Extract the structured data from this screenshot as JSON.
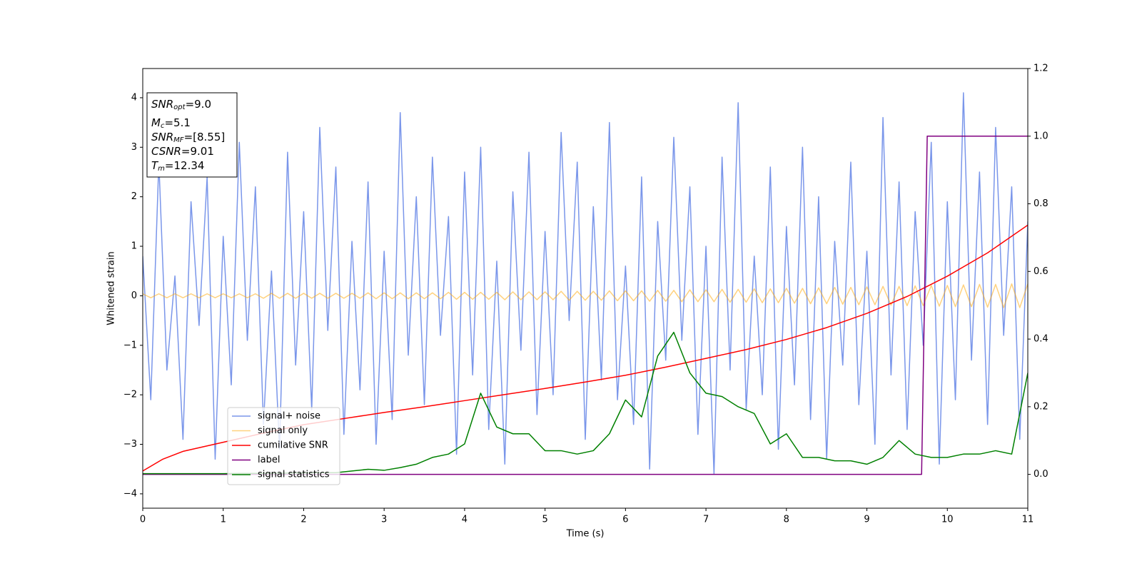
{
  "chart_data": {
    "type": "line",
    "xlabel": "Time (s)",
    "ylabel": "Whitened strain",
    "xlim": [
      0,
      11
    ],
    "xticks": [
      0,
      1,
      2,
      3,
      4,
      5,
      6,
      7,
      8,
      9,
      10,
      11
    ],
    "ylim": [
      -4.29,
      4.59
    ],
    "yticks": [
      {
        "value": -4,
        "label": "−4"
      },
      {
        "value": -3,
        "label": "−3"
      },
      {
        "value": -2,
        "label": "−2"
      },
      {
        "value": -1,
        "label": "−1"
      },
      0,
      1,
      2,
      3,
      4
    ],
    "y2lim": [
      -0.1,
      1.2
    ],
    "y2ticks": [
      {
        "value": 0,
        "label": "0.0"
      },
      {
        "value": 0.2,
        "label": "0.2"
      },
      {
        "value": 0.4,
        "label": "0.4"
      },
      {
        "value": 0.6,
        "label": "0.6"
      },
      {
        "value": 0.8,
        "label": "0.8"
      },
      {
        "value": 1,
        "label": "1.0"
      },
      {
        "value": 1.2,
        "label": "1.2"
      }
    ],
    "legend": "lower left",
    "annotation": [
      {
        "main": "SNR",
        "sub": "opt",
        "rest": "=9.0"
      },
      {
        "main": "M",
        "sub": "c",
        "rest": "=5.1"
      },
      {
        "main": "SNR",
        "sub": "MF",
        "rest": "=[8.55]"
      },
      {
        "main": "CSNR",
        "rest": "=9.01"
      },
      {
        "main": "T",
        "sub": "m",
        "rest": "=12.34"
      }
    ],
    "x": [
      0,
      0.1,
      0.2,
      0.3,
      0.4,
      0.5,
      0.6,
      0.7,
      0.8,
      0.9,
      1,
      1.1,
      1.2,
      1.3,
      1.4,
      1.5,
      1.6,
      1.7,
      1.8,
      1.9,
      2,
      2.1,
      2.2,
      2.3,
      2.4,
      2.5,
      2.6,
      2.7,
      2.8,
      2.9,
      3,
      3.1,
      3.2,
      3.3,
      3.4,
      3.5,
      3.6,
      3.7,
      3.8,
      3.9,
      4,
      4.1,
      4.2,
      4.3,
      4.4,
      4.5,
      4.6,
      4.7,
      4.8,
      4.9,
      5,
      5.1,
      5.2,
      5.3,
      5.4,
      5.5,
      5.6,
      5.7,
      5.8,
      5.9,
      6,
      6.1,
      6.2,
      6.3,
      6.4,
      6.5,
      6.6,
      6.7,
      6.8,
      6.9,
      7,
      7.1,
      7.2,
      7.3,
      7.4,
      7.5,
      7.6,
      7.7,
      7.8,
      7.9,
      8,
      8.1,
      8.2,
      8.3,
      8.4,
      8.5,
      8.6,
      8.7,
      8.8,
      8.9,
      9,
      9.1,
      9.2,
      9.3,
      9.4,
      9.5,
      9.6,
      9.7,
      9.8,
      9.9,
      10,
      10.1,
      10.2,
      10.3,
      10.4,
      10.5,
      10.6,
      10.7,
      10.8,
      10.9,
      11
    ],
    "series": [
      {
        "name": "signal+ noise",
        "color": "#4169e1",
        "alpha": 0.7,
        "values": [
          0.8,
          -2.1,
          2.7,
          -1.5,
          0.4,
          -2.9,
          1.9,
          -0.6,
          2.4,
          -3.3,
          1.2,
          -1.8,
          3.1,
          -0.9,
          2.2,
          -2.6,
          0.5,
          -3.1,
          2.9,
          -1.4,
          1.7,
          -2.3,
          3.4,
          -0.7,
          2.6,
          -2.8,
          1.1,
          -1.9,
          2.3,
          -3.0,
          0.9,
          -2.5,
          3.7,
          -1.2,
          2.0,
          -2.2,
          2.8,
          -0.8,
          1.6,
          -3.2,
          2.5,
          -1.6,
          3.0,
          -2.7,
          0.7,
          -3.4,
          2.1,
          -1.1,
          2.9,
          -2.4,
          1.3,
          -2.0,
          3.3,
          -0.5,
          2.7,
          -2.9,
          1.8,
          -1.7,
          3.5,
          -2.1,
          0.6,
          -2.6,
          2.4,
          -3.5,
          1.5,
          -1.3,
          3.2,
          -0.9,
          2.2,
          -2.8,
          1.0,
          -3.6,
          2.8,
          -1.5,
          3.9,
          -2.3,
          0.8,
          -2.0,
          2.6,
          -3.1,
          1.4,
          -1.8,
          3.0,
          -2.5,
          2.0,
          -3.3,
          1.1,
          -1.4,
          2.7,
          -2.2,
          0.9,
          -3.0,
          3.6,
          -1.6,
          2.3,
          -2.7,
          1.7,
          -1.0,
          3.1,
          -3.4,
          1.9,
          -2.1,
          4.1,
          -1.3,
          2.5,
          -2.6,
          3.4,
          -0.8,
          2.2,
          -2.9,
          1.5
        ]
      },
      {
        "name": "signal only",
        "color": "#ffa500",
        "alpha": 0.5,
        "values": [
          0.04,
          -0.04,
          0.04,
          -0.04,
          0.04,
          -0.04,
          0.04,
          -0.04,
          0.04,
          -0.04,
          0.04,
          -0.04,
          0.04,
          -0.04,
          0.04,
          -0.05,
          0.05,
          -0.05,
          0.05,
          -0.05,
          0.05,
          -0.05,
          0.05,
          -0.05,
          0.05,
          -0.05,
          0.05,
          -0.05,
          0.06,
          -0.06,
          0.06,
          -0.06,
          0.06,
          -0.06,
          0.06,
          -0.06,
          0.06,
          -0.06,
          0.07,
          -0.07,
          0.07,
          -0.07,
          0.07,
          -0.07,
          0.07,
          -0.08,
          0.08,
          -0.08,
          0.08,
          -0.08,
          0.08,
          -0.08,
          0.09,
          -0.09,
          0.09,
          -0.09,
          0.09,
          -0.09,
          0.1,
          -0.1,
          0.1,
          -0.1,
          0.1,
          -0.11,
          0.11,
          -0.11,
          0.11,
          -0.12,
          0.12,
          -0.12,
          0.12,
          -0.12,
          0.13,
          -0.13,
          0.13,
          -0.13,
          0.14,
          -0.14,
          0.14,
          -0.14,
          0.15,
          -0.15,
          0.15,
          -0.16,
          0.16,
          -0.16,
          0.17,
          -0.17,
          0.17,
          -0.18,
          0.18,
          -0.18,
          0.19,
          -0.19,
          0.19,
          -0.2,
          0.2,
          -0.2,
          0.21,
          -0.21,
          0.21,
          -0.22,
          0.22,
          -0.22,
          0.23,
          -0.23,
          0.23,
          -0.24,
          0.24,
          -0.24,
          0.24
        ]
      },
      {
        "name": "cumilative SNR",
        "color": "#ff0000",
        "axis": "y2",
        "x": [
          0,
          0.25,
          0.5,
          1,
          1.5,
          2,
          2.5,
          3,
          3.5,
          4,
          4.5,
          5,
          5.5,
          6,
          6.5,
          7,
          7.5,
          8,
          8.5,
          9,
          9.5,
          10,
          10.5,
          11
        ],
        "values": [
          0.01,
          0.045,
          0.068,
          0.095,
          0.122,
          0.147,
          0.165,
          0.183,
          0.2,
          0.218,
          0.236,
          0.254,
          0.273,
          0.293,
          0.317,
          0.343,
          0.369,
          0.399,
          0.434,
          0.476,
          0.526,
          0.586,
          0.655,
          0.737
        ]
      },
      {
        "name": "label",
        "color": "#800080",
        "axis": "y2",
        "x": [
          0,
          9.68,
          9.75,
          11
        ],
        "values": [
          0,
          0,
          1,
          1
        ]
      },
      {
        "name": "signal statistics",
        "color": "#008000",
        "axis": "y2",
        "x": [
          0,
          0.2,
          0.4,
          0.6,
          0.8,
          1,
          1.2,
          1.4,
          1.6,
          1.8,
          2,
          2.2,
          2.4,
          2.6,
          2.8,
          3,
          3.2,
          3.4,
          3.6,
          3.8,
          4,
          4.2,
          4.4,
          4.6,
          4.8,
          5,
          5.2,
          5.4,
          5.6,
          5.8,
          6,
          6.2,
          6.4,
          6.6,
          6.8,
          7,
          7.2,
          7.4,
          7.6,
          7.8,
          8,
          8.2,
          8.4,
          8.6,
          8.8,
          9,
          9.2,
          9.4,
          9.6,
          9.8,
          10,
          10.2,
          10.4,
          10.6,
          10.8,
          11
        ],
        "values": [
          0.002,
          0.002,
          0.002,
          0.002,
          0.002,
          0.002,
          0.003,
          0.003,
          0.003,
          0.004,
          0.004,
          0.005,
          0.005,
          0.01,
          0.015,
          0.012,
          0.02,
          0.03,
          0.05,
          0.06,
          0.09,
          0.24,
          0.14,
          0.12,
          0.12,
          0.07,
          0.07,
          0.06,
          0.07,
          0.12,
          0.22,
          0.17,
          0.35,
          0.42,
          0.3,
          0.24,
          0.23,
          0.2,
          0.18,
          0.09,
          0.12,
          0.05,
          0.05,
          0.04,
          0.04,
          0.03,
          0.05,
          0.1,
          0.06,
          0.05,
          0.05,
          0.06,
          0.06,
          0.07,
          0.06,
          0.3
        ]
      }
    ]
  }
}
